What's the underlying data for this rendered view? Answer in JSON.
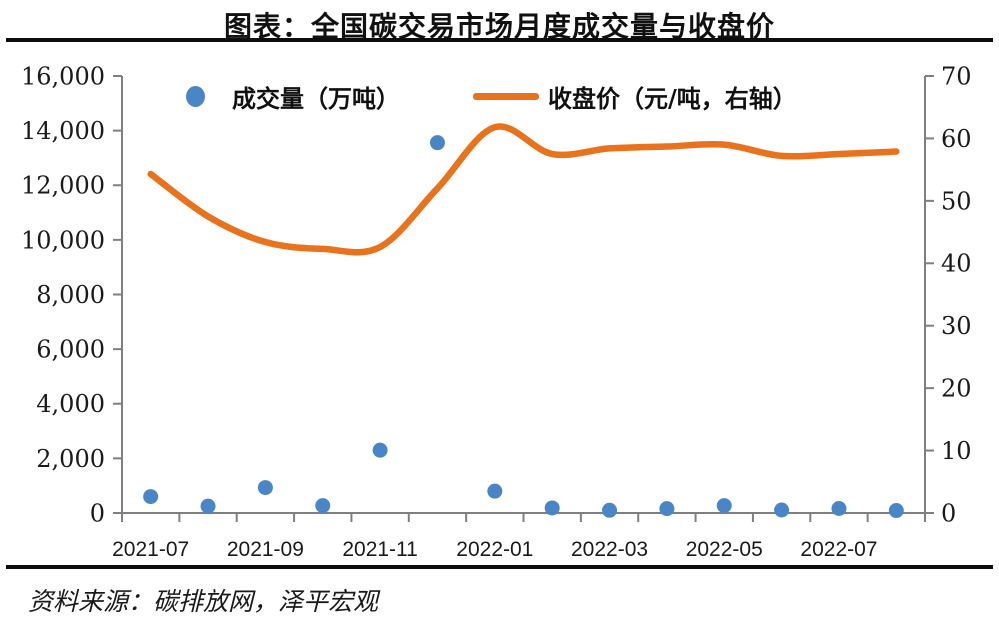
{
  "title": "图表：全国碳交易市场月度成交量与收盘价",
  "source": "资料来源：碳排放网，泽平宏观",
  "colors": {
    "volume_blue": "#4a86c6",
    "price_orange": "#e8731c",
    "axis_gray": "#7f7f7f",
    "text_black": "#1a1a1a"
  },
  "legend": [
    {
      "label": "成交量（万吨）",
      "marker": "dot",
      "color": "#4a86c6"
    },
    {
      "label": "收盘价（元/吨，右轴）",
      "marker": "line",
      "color": "#e8731c"
    }
  ],
  "chart_data": {
    "type": "scatter",
    "subtype": "dual-axis scatter + smooth line",
    "title": "图表：全国碳交易市场月度成交量与收盘价",
    "x": [
      "2021-07",
      "2021-08",
      "2021-09",
      "2021-10",
      "2021-11",
      "2021-12",
      "2022-01",
      "2022-02",
      "2022-03",
      "2022-04",
      "2022-05",
      "2022-06",
      "2022-07",
      "2022-08"
    ],
    "x_tick_labels": [
      "2021-07",
      "2021-09",
      "2021-11",
      "2022-01",
      "2022-03",
      "2022-05",
      "2022-07"
    ],
    "x_tick_month_indices": [
      0,
      2,
      4,
      6,
      8,
      10,
      12
    ],
    "series": [
      {
        "name": "成交量（万吨）",
        "type": "scatter",
        "axis": "left",
        "color": "#4a86c6",
        "values": [
          600,
          250,
          930,
          270,
          2300,
          13560,
          800,
          185,
          100,
          160,
          270,
          110,
          165,
          90
        ]
      },
      {
        "name": "收盘价（元/吨，右轴）",
        "type": "line",
        "axis": "right",
        "color": "#e8731c",
        "values": [
          54.3,
          47.5,
          43.4,
          42.3,
          42.6,
          52.0,
          61.8,
          57.5,
          58.4,
          58.7,
          59.0,
          57.2,
          57.5,
          57.9
        ]
      }
    ],
    "left_axis": {
      "min": 0,
      "max": 16000,
      "step": 2000,
      "tick_labels": [
        "0",
        "2,000",
        "4,000",
        "6,000",
        "8,000",
        "10,000",
        "12,000",
        "14,000",
        "16,000"
      ]
    },
    "right_axis": {
      "min": 0,
      "max": 70,
      "step": 10,
      "tick_labels": [
        "0",
        "10",
        "20",
        "30",
        "40",
        "50",
        "60",
        "70"
      ]
    },
    "grid": false,
    "legend_position": "top-inside"
  }
}
